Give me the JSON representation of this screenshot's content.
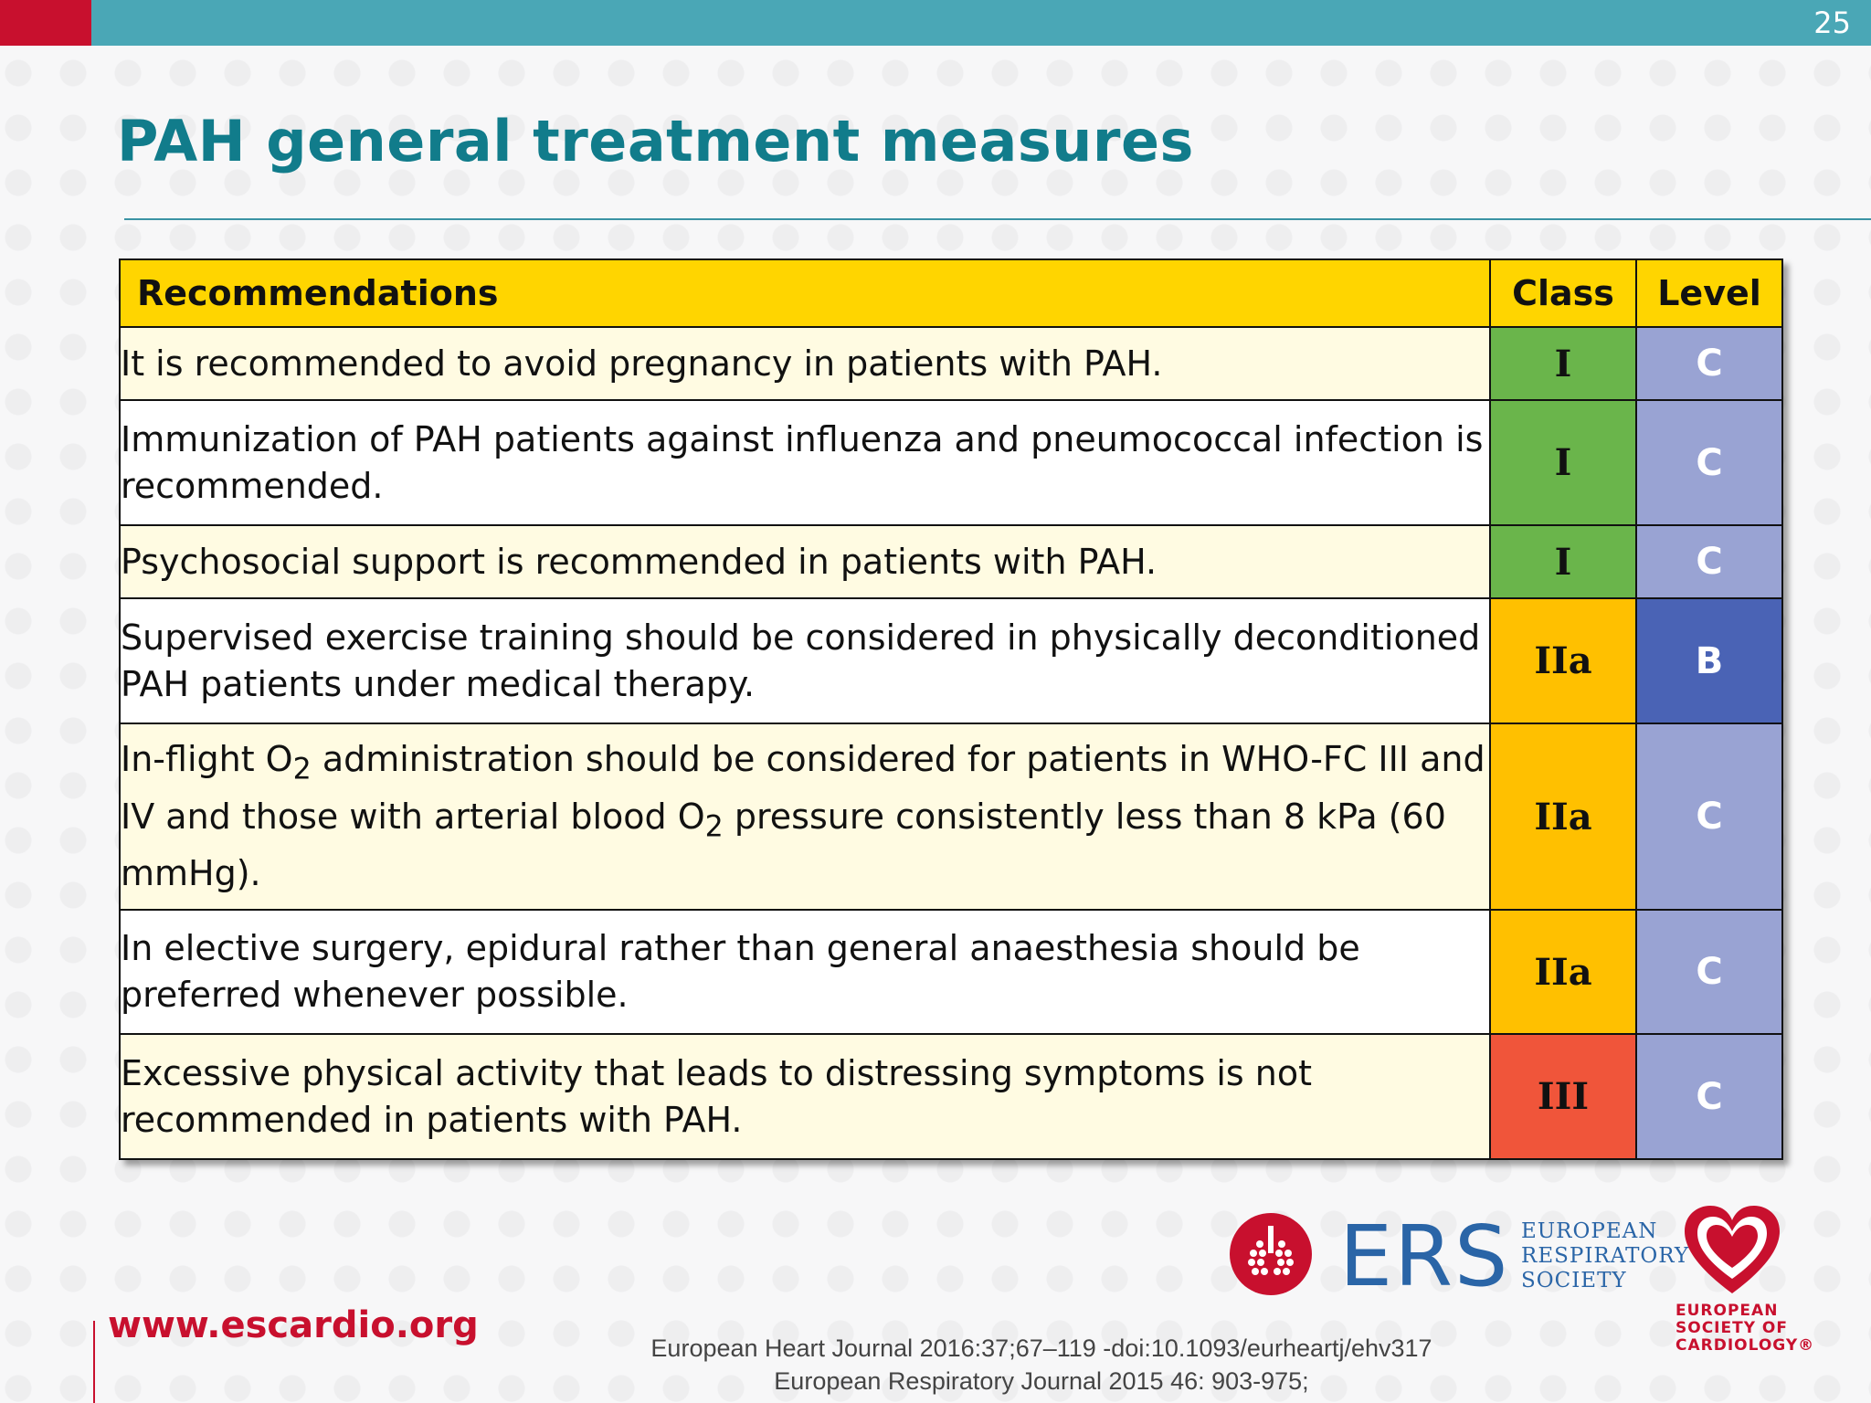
{
  "header": {
    "page_number": "25"
  },
  "slide": {
    "title": "PAH general treatment measures"
  },
  "table": {
    "headers": {
      "recommendations": "Recommendations",
      "class": "Class",
      "level": "Level"
    },
    "rows": [
      {
        "text": "It is recommended to avoid pregnancy in patients with PAH.",
        "class": "I",
        "level": "C",
        "class_color": "#6ab54b",
        "level_color": "#99a3d3"
      },
      {
        "text": "Immunization of PAH patients against influenza and pneumococcal infection is recommended.",
        "class": "I",
        "level": "C",
        "class_color": "#6ab54b",
        "level_color": "#99a3d3"
      },
      {
        "text": "Psychosocial support is recommended in patients with PAH.",
        "class": "I",
        "level": "C",
        "class_color": "#6ab54b",
        "level_color": "#99a3d3"
      },
      {
        "text": "Supervised exercise training should be considered in physically deconditioned PAH patients under medical therapy.",
        "class": "IIa",
        "level": "B",
        "class_color": "#ffc000",
        "level_color": "#4a63b5"
      },
      {
        "text_parts": [
          "In-flight O",
          "2",
          " administration should be considered for patients in WHO-FC III and IV and those with arterial blood O",
          "2",
          " pressure consistently less than 8 kPa (60 mmHg)."
        ],
        "class": "IIa",
        "level": "C",
        "class_color": "#ffc000",
        "level_color": "#99a3d3"
      },
      {
        "text": "In elective surgery, epidural rather than general anaesthesia should be preferred whenever possible.",
        "class": "IIa",
        "level": "C",
        "class_color": "#ffc000",
        "level_color": "#99a3d3"
      },
      {
        "text": "Excessive physical activity that leads to distressing symptoms is not recommended in patients with PAH.",
        "class": "III",
        "level": "C",
        "class_color": "#f0553a",
        "level_color": "#99a3d3"
      }
    ]
  },
  "footer": {
    "url": "www.escardio.org",
    "citation_1": "European Heart Journal 2016:37;67–119 -doi:10.1093/eurheartj/ehv317",
    "citation_2": "European Respiratory Journal 2015 46: 903-975;",
    "ers_logo": {
      "letters": "ERS",
      "line1": "EUROPEAN",
      "line2": "RESPIRATORY",
      "line3": "SOCIETY"
    },
    "esc_logo": {
      "line1": "EUROPEAN",
      "line2": "SOCIETY OF",
      "line3": "CARDIOLOGY®"
    }
  },
  "colors": {
    "brand_teal": "#117c8b",
    "brand_red": "#c8102e",
    "header_yellow": "#ffd500"
  }
}
